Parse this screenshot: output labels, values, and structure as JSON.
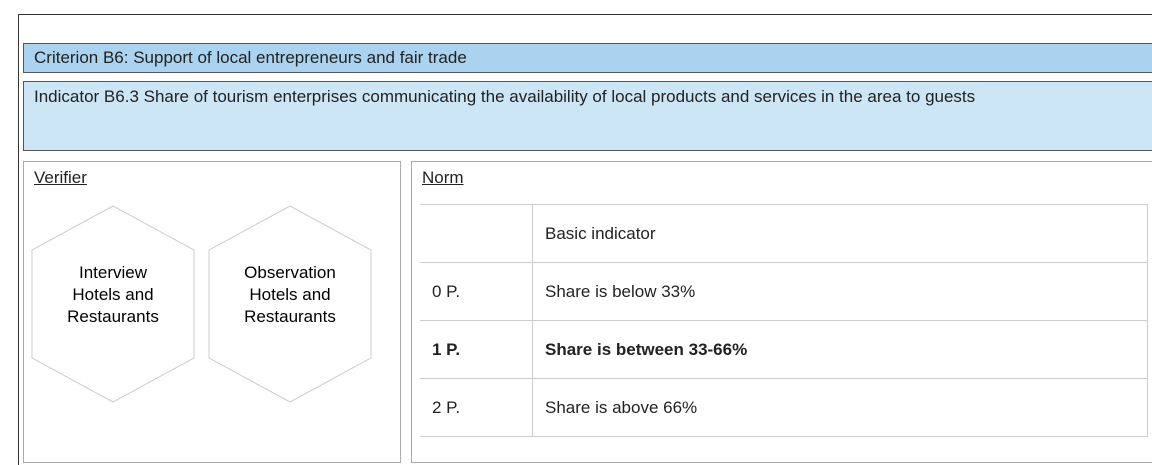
{
  "criterion": "Criterion B6: Support of local entrepreneurs and fair trade",
  "indicator": "Indicator B6.3 Share of tourism enterprises communicating the availability of local products and services in the area to guests",
  "verifier": {
    "title": "Verifier",
    "items": [
      "Interview Hotels and Restaurants",
      "Observation Hotels and Restaurants"
    ]
  },
  "norm": {
    "title": "Norm",
    "header": "Basic indicator",
    "rows": [
      [
        "0 P.",
        "Share is below 33%"
      ],
      [
        "1 P.",
        "Share is between 33-66%"
      ],
      [
        "2 P.",
        "Share is above 66%"
      ]
    ]
  }
}
